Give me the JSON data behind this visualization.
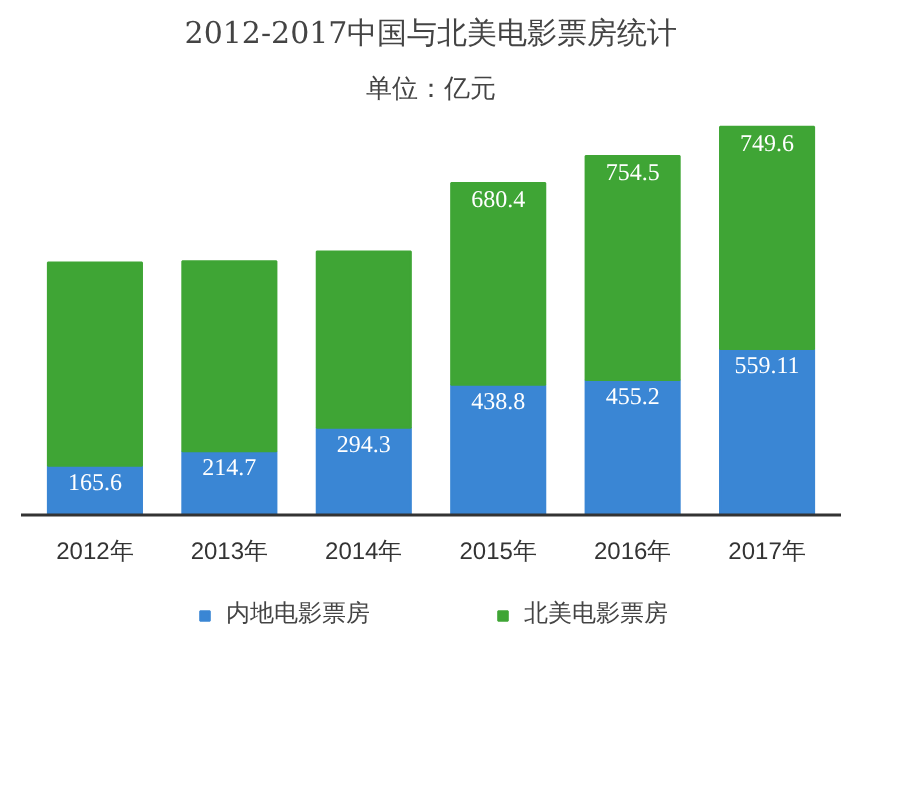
{
  "chart_data": {
    "type": "bar",
    "title": "2012-2017中国与北美电影票房统计",
    "subtitle": "单位：亿元",
    "categories": [
      "2012年",
      "2013年",
      "2014年",
      "2015年",
      "2016年",
      "2017年"
    ],
    "stacked": true,
    "legend": "bottom",
    "series": [
      {
        "name": "内地电影票房",
        "color": "#3a86d4",
        "values": [
          165.6,
          214.7,
          294.3,
          438.8,
          455.2,
          559.11
        ],
        "value_labels": [
          "165.6",
          "214.7",
          "294.3",
          "438.8",
          "455.2",
          "559.11"
        ]
      },
      {
        "name": "北美电影票房",
        "color": "#3fa535",
        "values": [
          685,
          640,
          594,
          680.4,
          754.5,
          749.6
        ],
        "value_labels": [
          null,
          null,
          null,
          "680.4",
          "754.5",
          "749.6"
        ]
      }
    ]
  }
}
